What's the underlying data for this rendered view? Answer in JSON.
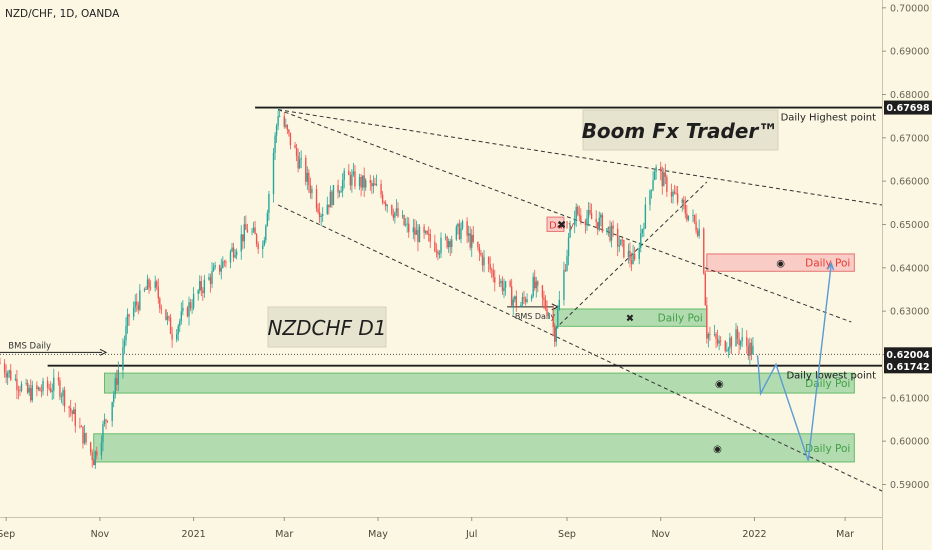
{
  "header": {
    "symbol": "NZD/CHF, 1D, OANDA"
  },
  "chart_data": {
    "type": "candlestick",
    "x_axis": {
      "ticks": [
        {
          "date": "2020-09-01",
          "label": "Sep"
        },
        {
          "date": "2020-11-01",
          "label": "Nov"
        },
        {
          "date": "2021-01-01",
          "label": "2021"
        },
        {
          "date": "2021-03-01",
          "label": "Mar"
        },
        {
          "date": "2021-05-01",
          "label": "May"
        },
        {
          "date": "2021-07-01",
          "label": "Jul"
        },
        {
          "date": "2021-09-01",
          "label": "Sep"
        },
        {
          "date": "2021-11-01",
          "label": "Nov"
        },
        {
          "date": "2022-01-01",
          "label": "2022"
        },
        {
          "date": "2022-03-01",
          "label": "Mar"
        }
      ],
      "range": [
        "2020-08-28",
        "2022-03-25"
      ]
    },
    "y_axis": {
      "range": [
        0.5825,
        0.7018
      ],
      "ticks": [
        0.59,
        0.6,
        0.61,
        0.62,
        0.63,
        0.64,
        0.65,
        0.66,
        0.67,
        0.68,
        0.69,
        0.7
      ],
      "tick_labels": [
        "0.59000",
        "0.60000",
        "0.61000",
        "0.62000",
        "0.63000",
        "0.64000",
        "0.65000",
        "0.66000",
        "0.67000",
        "0.68000",
        "0.69000",
        "0.70000"
      ]
    },
    "price_path": [
      {
        "date": "2020-08-28",
        "price": 0.618
      },
      {
        "date": "2020-09-15",
        "price": 0.611
      },
      {
        "date": "2020-10-05",
        "price": 0.613
      },
      {
        "date": "2020-10-20",
        "price": 0.602
      },
      {
        "date": "2020-10-28",
        "price": 0.596
      },
      {
        "date": "2020-11-10",
        "price": 0.611
      },
      {
        "date": "2020-11-20",
        "price": 0.629
      },
      {
        "date": "2020-12-05",
        "price": 0.637
      },
      {
        "date": "2020-12-18",
        "price": 0.625
      },
      {
        "date": "2021-01-05",
        "price": 0.635
      },
      {
        "date": "2021-01-20",
        "price": 0.641
      },
      {
        "date": "2021-02-05",
        "price": 0.649
      },
      {
        "date": "2021-02-15",
        "price": 0.645
      },
      {
        "date": "2021-02-25",
        "price": 0.676
      },
      {
        "date": "2021-03-10",
        "price": 0.665
      },
      {
        "date": "2021-03-25",
        "price": 0.653
      },
      {
        "date": "2021-04-10",
        "price": 0.661
      },
      {
        "date": "2021-05-01",
        "price": 0.658
      },
      {
        "date": "2021-05-20",
        "price": 0.649
      },
      {
        "date": "2021-06-10",
        "price": 0.645
      },
      {
        "date": "2021-06-25",
        "price": 0.649
      },
      {
        "date": "2021-07-10",
        "price": 0.641
      },
      {
        "date": "2021-08-01",
        "price": 0.631
      },
      {
        "date": "2021-08-10",
        "price": 0.636
      },
      {
        "date": "2021-08-20",
        "price": 0.63
      },
      {
        "date": "2021-08-24",
        "price": 0.625
      },
      {
        "date": "2021-09-05",
        "price": 0.653
      },
      {
        "date": "2021-09-25",
        "price": 0.65
      },
      {
        "date": "2021-10-15",
        "price": 0.641
      },
      {
        "date": "2021-10-28",
        "price": 0.663
      },
      {
        "date": "2021-11-15",
        "price": 0.654
      },
      {
        "date": "2021-11-28",
        "price": 0.648
      },
      {
        "date": "2021-12-01",
        "price": 0.625
      },
      {
        "date": "2021-12-10",
        "price": 0.622
      },
      {
        "date": "2021-12-20",
        "price": 0.624
      },
      {
        "date": "2022-01-03",
        "price": 0.62
      }
    ],
    "horizontal_lines": [
      {
        "label": "Daily Highest point",
        "price": 0.67698,
        "start": "2021-02-10",
        "end": "2022-03-25"
      },
      {
        "label": "Daily lowest point",
        "price": 0.61742,
        "start": "2020-09-28",
        "end": "2022-03-25"
      }
    ],
    "bms_marks": [
      {
        "label": "BMS Daily",
        "price": 0.6205,
        "start": "2020-08-28",
        "end": "2020-11-05"
      },
      {
        "label": "BMS Daily",
        "price": 0.631,
        "start": "2021-07-24",
        "end": "2021-08-26"
      }
    ],
    "trendlines": [
      {
        "points": [
          [
            "2021-02-25",
            0.6765
          ],
          [
            "2022-03-05",
            0.6275
          ]
        ]
      },
      {
        "points": [
          [
            "2021-02-25",
            0.6765
          ],
          [
            "2022-03-25",
            0.6545
          ]
        ]
      },
      {
        "points": [
          [
            "2021-02-25",
            0.6545
          ],
          [
            "2022-03-25",
            0.5885
          ]
        ]
      },
      {
        "points": [
          [
            "2021-08-24",
            0.6258
          ],
          [
            "2021-12-01",
            0.6598
          ]
        ]
      }
    ],
    "zones": [
      {
        "label": "Daily",
        "kind": "supply",
        "top": 0.6517,
        "bottom": 0.6484,
        "start": "2021-08-19",
        "end": "2021-08-30",
        "marker": "✖"
      },
      {
        "label": "Daily Poi",
        "kind": "supply",
        "top": 0.6432,
        "bottom": 0.6392,
        "start": "2021-12-01",
        "end": "2022-03-07",
        "marker": "◉"
      },
      {
        "label": "Daily Poi",
        "kind": "demand",
        "top": 0.6305,
        "bottom": 0.6265,
        "start": "2021-08-23",
        "end": "2021-12-01",
        "marker": "✖"
      },
      {
        "label": "Daily Poi",
        "kind": "demand",
        "top": 0.6157,
        "bottom": 0.6111,
        "start": "2020-11-04",
        "end": "2022-03-07",
        "marker": "◉"
      },
      {
        "label": "Daily Poi",
        "kind": "demand",
        "top": 0.6017,
        "bottom": 0.5952,
        "start": "2020-10-28",
        "end": "2022-03-07",
        "marker": "◉"
      }
    ],
    "projection_path": [
      {
        "date": "2022-01-03",
        "price": 0.6198
      },
      {
        "date": "2022-01-05",
        "price": 0.611
      },
      {
        "date": "2022-01-15",
        "price": 0.6177
      },
      {
        "date": "2022-02-05",
        "price": 0.5955
      },
      {
        "date": "2022-02-20",
        "price": 0.641
      }
    ],
    "price_labels": [
      {
        "text": "0.67698",
        "price": 0.67698
      },
      {
        "text": "0.62004",
        "price": 0.62004
      },
      {
        "text": "0.61742",
        "price": 0.61742
      }
    ],
    "annotations": [
      {
        "text": "NZDCHF D1"
      },
      {
        "text": "Boom Fx Trader™"
      }
    ],
    "colors": {
      "background": "#fbf7e3",
      "bull": "#26a69a",
      "bear": "#ef5350",
      "demand_fill": "#a5d6a7",
      "supply_fill": "#f8c8c2",
      "projection": "#5b9bd5"
    }
  }
}
